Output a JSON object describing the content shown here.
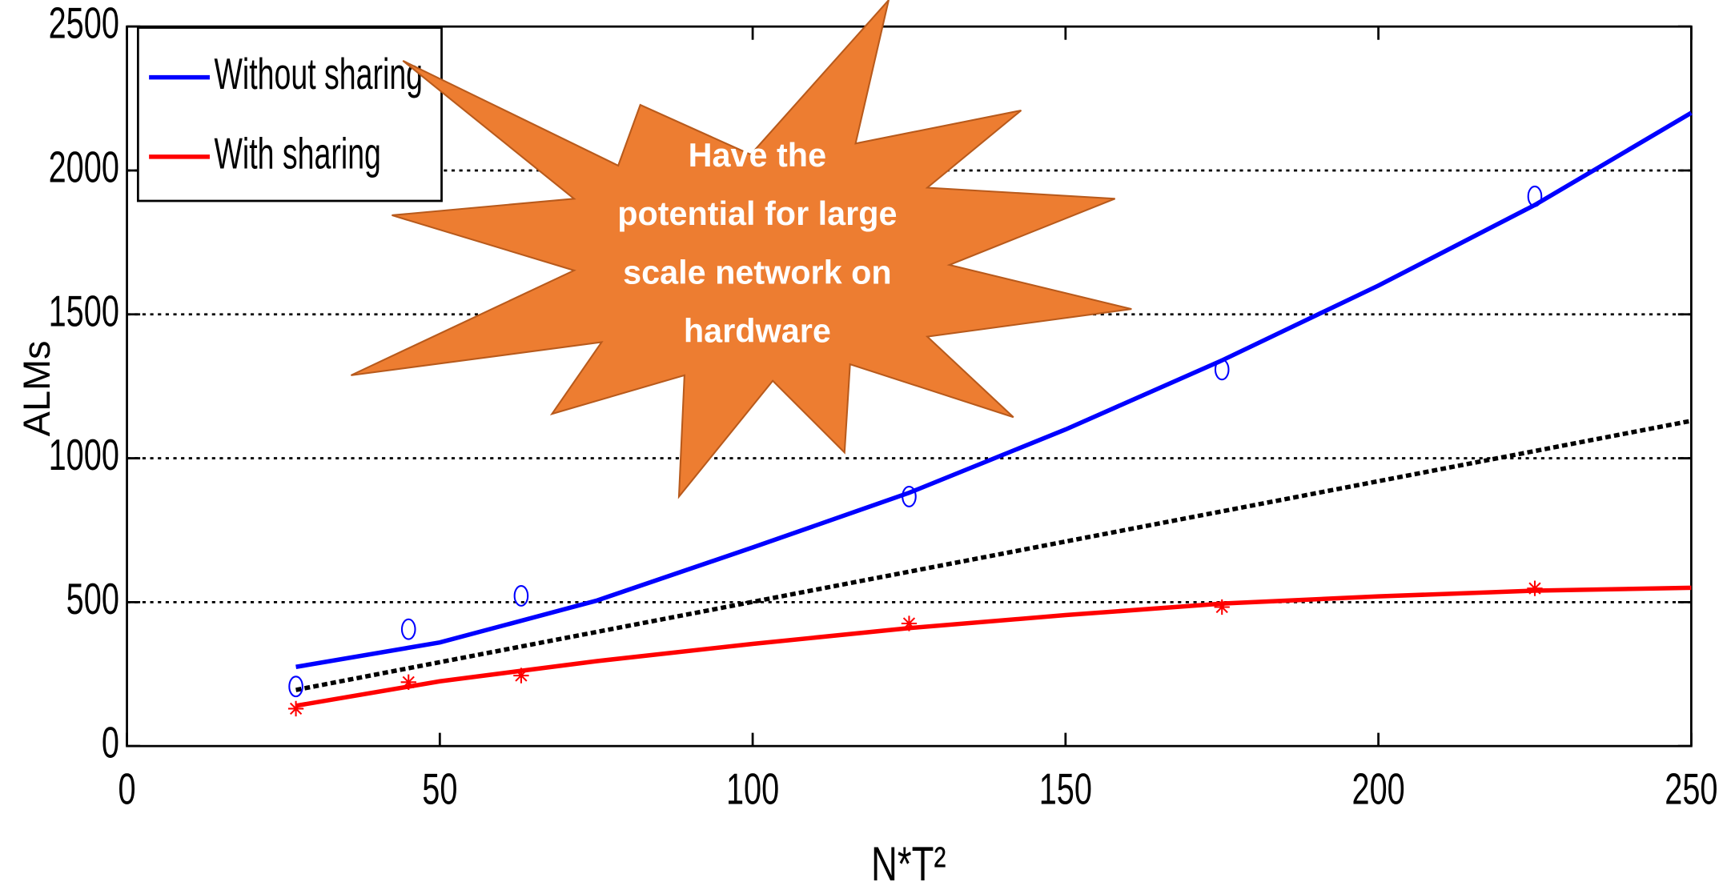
{
  "chart_data": {
    "type": "line",
    "xlabel": "N*T²",
    "ylabel": "ALMs",
    "xlim": [
      0,
      250
    ],
    "ylim": [
      0,
      2500
    ],
    "xticks": [
      0,
      50,
      100,
      150,
      200,
      250
    ],
    "yticks": [
      0,
      500,
      1000,
      1500,
      2000,
      2500
    ],
    "grid": true,
    "legend": "upper left",
    "series": [
      {
        "name": "Without sharing",
        "color": "#0000ff",
        "x": [
          27,
          50,
          75,
          100,
          125,
          150,
          175,
          200,
          225,
          250
        ],
        "values": [
          275,
          360,
          505,
          690,
          880,
          1100,
          1340,
          1600,
          1880,
          2200
        ],
        "marker": "o",
        "marker_x": [
          27,
          45,
          63,
          125,
          175,
          225
        ],
        "marker_values": [
          207,
          406,
          522,
          867,
          1308,
          1910
        ]
      },
      {
        "name": "With sharing",
        "color": "#ff0000",
        "x": [
          27,
          50,
          75,
          100,
          125,
          150,
          175,
          200,
          225,
          250
        ],
        "values": [
          140,
          225,
          295,
          355,
          410,
          455,
          495,
          520,
          540,
          550
        ],
        "marker": "*",
        "marker_x": [
          27,
          45,
          63,
          125,
          175,
          225
        ],
        "marker_values": [
          130,
          222,
          245,
          426,
          483,
          548
        ]
      }
    ],
    "reference_line": {
      "x": [
        27,
        250
      ],
      "values": [
        195,
        1130
      ],
      "color": "#000000",
      "dash": true
    },
    "annotation": {
      "lines": [
        "Have the",
        "potential for large",
        "scale network on",
        "hardware"
      ],
      "color": "#ed7d31",
      "text_color": "#ffffff"
    }
  }
}
